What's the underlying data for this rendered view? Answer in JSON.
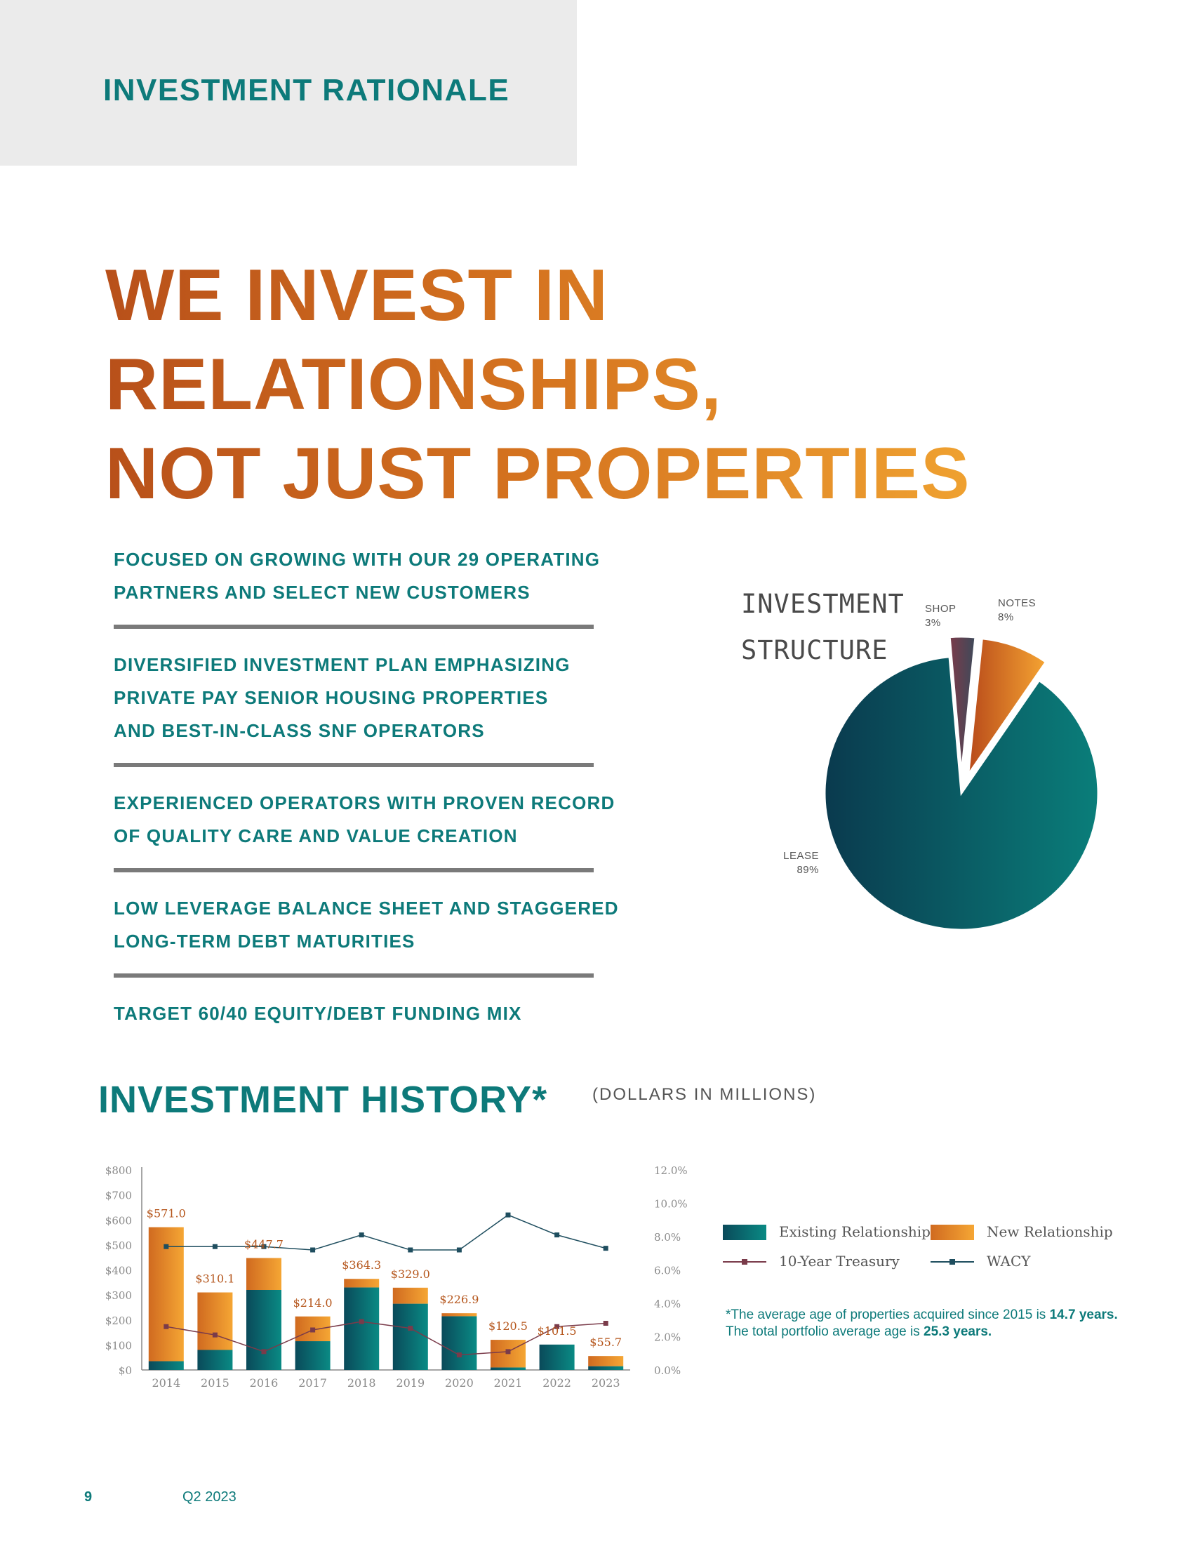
{
  "header": {
    "section_label": "INVESTMENT RATIONALE"
  },
  "headline": {
    "lines": [
      "WE INVEST IN",
      "RELATIONSHIPS,",
      "NOT JUST PROPERTIES"
    ]
  },
  "bullets": [
    [
      "FOCUSED ON GROWING WITH OUR 29 OPERATING",
      "PARTNERS AND SELECT NEW CUSTOMERS"
    ],
    [
      "DIVERSIFIED INVESTMENT PLAN EMPHASIZING",
      "PRIVATE PAY SENIOR HOUSING PROPERTIES",
      "AND BEST-IN-CLASS SNF OPERATORS"
    ],
    [
      "EXPERIENCED OPERATORS WITH PROVEN RECORD",
      "OF QUALITY CARE AND VALUE CREATION"
    ],
    [
      "LOW LEVERAGE BALANCE SHEET AND STAGGERED",
      "LONG-TERM DEBT MATURITIES"
    ],
    [
      "TARGET 60/40 EQUITY/DEBT FUNDING MIX"
    ]
  ],
  "pie": {
    "title_lines": [
      "INVESTMENT",
      "STRUCTURE"
    ],
    "chart_data": {
      "type": "pie",
      "slices": [
        {
          "label": "LEASE",
          "value_label": "89%",
          "value": 89
        },
        {
          "label": "SHOP",
          "value_label": "3%",
          "value": 3
        },
        {
          "label": "NOTES",
          "value_label": "8%",
          "value": 8
        }
      ]
    }
  },
  "history": {
    "title": "INVESTMENT HISTORY*",
    "subtitle": "(DOLLARS IN MILLIONS)",
    "left_ticks": [
      "$800",
      "$700",
      "$600",
      "$500",
      "$400",
      "$300",
      "$200",
      "$100",
      "$0"
    ],
    "right_ticks": [
      "12.0%",
      "10.0%",
      "8.0%",
      "6.0%",
      "4.0%",
      "2.0%",
      "0.0%"
    ],
    "legend": {
      "existing": "Existing Relationship",
      "new": "New Relationship",
      "treasury": "10-Year Treasury",
      "wacy": "WACY"
    },
    "footnote": {
      "part1": "*The average age of properties acquired since 2015 is ",
      "bold1": "14.7 years.",
      "part2": " The total portfolio average age is ",
      "bold2": "25.3 years."
    }
  },
  "chart_data": {
    "type": "bar",
    "categories": [
      "2014",
      "2015",
      "2016",
      "2017",
      "2018",
      "2019",
      "2020",
      "2021",
      "2022",
      "2023"
    ],
    "series": [
      {
        "name": "Existing Relationship",
        "values": [
          35,
          80,
          320,
          115,
          330,
          265,
          215,
          10,
          101.5,
          15
        ]
      },
      {
        "name": "New Relationship",
        "values": [
          536,
          230.1,
          127.7,
          99,
          34.3,
          64,
          11.9,
          110.5,
          0,
          40.7
        ]
      },
      {
        "name": "10-Year Treasury",
        "values": [
          2.6,
          2.1,
          1.1,
          2.4,
          2.9,
          2.5,
          0.9,
          1.1,
          2.6,
          2.8
        ]
      },
      {
        "name": "WACY",
        "values": [
          7.4,
          7.4,
          7.4,
          7.2,
          8.1,
          7.2,
          7.2,
          9.3,
          8.1,
          7.3
        ]
      }
    ],
    "total_labels": [
      "$571.0",
      "$310.1",
      "$447.7",
      "$214.0",
      "$364.3",
      "$329.0",
      "$226.9",
      "$120.5",
      "$101.5",
      "$55.7"
    ],
    "ylim": [
      0,
      800
    ],
    "y2lim": [
      0,
      12
    ],
    "colors": {
      "existing": "#0d7a7a",
      "new": "#e07a24",
      "treasury": "#7a3b4a",
      "wacy": "#1f4e5f"
    }
  },
  "footer": {
    "page": "9",
    "period": "Q2 2023"
  }
}
